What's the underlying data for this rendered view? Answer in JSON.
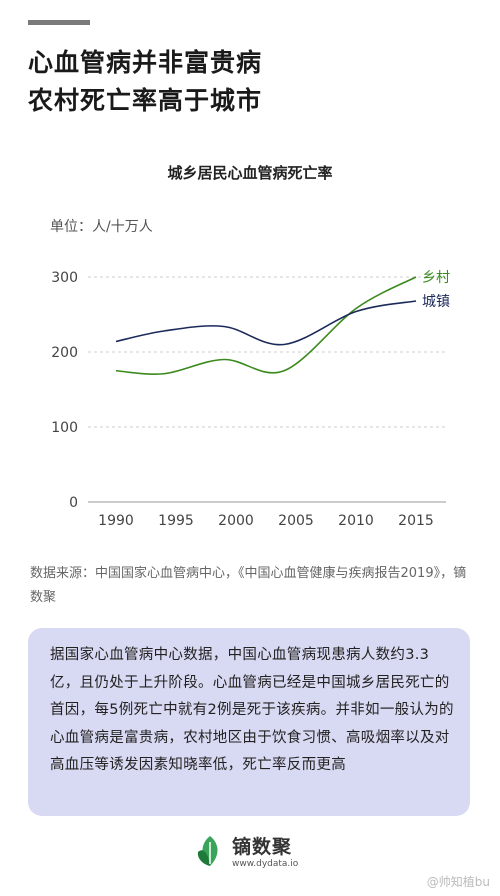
{
  "header": {
    "line1": "心血管病并非富贵病",
    "line2": "农村死亡率高于城市"
  },
  "chart_data": {
    "type": "line",
    "title": "城乡居民心血管病死亡率",
    "unit_label": "单位：人/十万人",
    "x": [
      1990,
      1995,
      2000,
      2005,
      2010,
      2015
    ],
    "xlim": [
      1990,
      2015
    ],
    "ylim": [
      0,
      300
    ],
    "yticks": [
      0,
      100,
      200,
      300
    ],
    "grid": "horizontal dashed",
    "series": [
      {
        "name": "乡村",
        "color": "#3b8a1e",
        "points": [
          [
            1990,
            175
          ],
          [
            1994,
            171
          ],
          [
            1999,
            190
          ],
          [
            2004,
            175
          ],
          [
            2010,
            258
          ],
          [
            2015,
            300
          ]
        ]
      },
      {
        "name": "城镇",
        "color": "#1b2a5a",
        "points": [
          [
            1990,
            214
          ],
          [
            1994,
            228
          ],
          [
            1999,
            234
          ],
          [
            2004,
            210
          ],
          [
            2010,
            254
          ],
          [
            2015,
            268
          ]
        ]
      }
    ]
  },
  "source": "数据来源：中国国家心血管病中心，《中国心血管健康与疾病报告2019》，镝数聚",
  "note": "据国家心血管病中心数据，中国心血管病现患病人数约3.3亿，且仍处于上升阶段。心血管病已经是中国城乡居民死亡的首因，每5例死亡中就有2例是死于该疾病。并非如一般认为的心血管病是富贵病，农村地区由于饮食习惯、高吸烟率以及对高血压等诱发因素知晓率低，死亡率反而更高",
  "brand": {
    "name": "镝数聚",
    "url": "www.dydata.io",
    "logo_color": "#3aa55a"
  },
  "watermark": "@帅知植bu"
}
